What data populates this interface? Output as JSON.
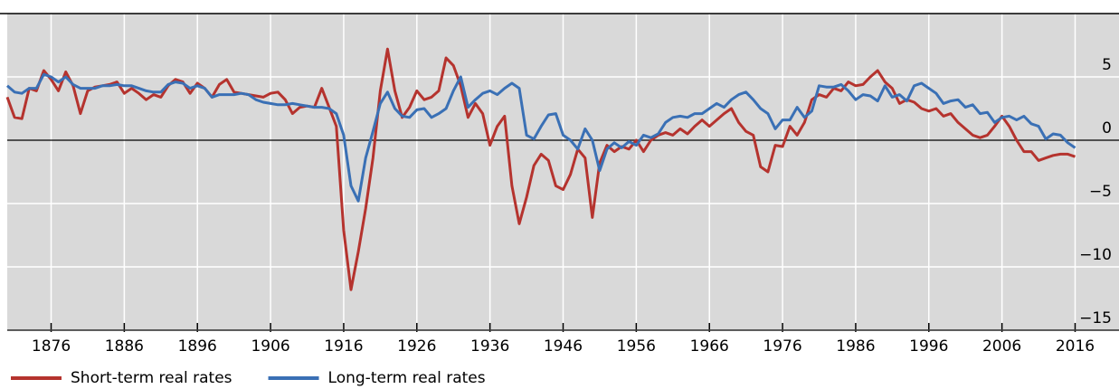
{
  "chart_data": {
    "type": "line",
    "x": [
      1870,
      1871,
      1872,
      1873,
      1874,
      1875,
      1876,
      1877,
      1878,
      1879,
      1880,
      1881,
      1882,
      1883,
      1884,
      1885,
      1886,
      1887,
      1888,
      1889,
      1890,
      1891,
      1892,
      1893,
      1894,
      1895,
      1896,
      1897,
      1898,
      1899,
      1900,
      1901,
      1902,
      1903,
      1904,
      1905,
      1906,
      1907,
      1908,
      1909,
      1910,
      1911,
      1912,
      1913,
      1914,
      1915,
      1916,
      1917,
      1918,
      1919,
      1920,
      1921,
      1922,
      1923,
      1924,
      1925,
      1926,
      1927,
      1928,
      1929,
      1930,
      1931,
      1932,
      1933,
      1934,
      1935,
      1936,
      1937,
      1938,
      1939,
      1940,
      1941,
      1942,
      1943,
      1944,
      1945,
      1946,
      1947,
      1948,
      1949,
      1950,
      1951,
      1952,
      1953,
      1954,
      1955,
      1956,
      1957,
      1958,
      1959,
      1960,
      1961,
      1962,
      1963,
      1964,
      1965,
      1966,
      1967,
      1968,
      1969,
      1970,
      1971,
      1972,
      1973,
      1974,
      1975,
      1976,
      1977,
      1978,
      1979,
      1980,
      1981,
      1982,
      1983,
      1984,
      1985,
      1986,
      1987,
      1988,
      1989,
      1990,
      1991,
      1992,
      1993,
      1994,
      1995,
      1996,
      1997,
      1998,
      1999,
      2000,
      2001,
      2002,
      2003,
      2004,
      2005,
      2006,
      2007,
      2008,
      2009,
      2010,
      2011,
      2012,
      2013,
      2014,
      2015,
      2016
    ],
    "series": [
      {
        "name": "Short-term real rates",
        "color": "#b5332e",
        "values": [
          3.4,
          1.8,
          1.7,
          4.1,
          3.9,
          5.5,
          4.8,
          3.9,
          5.4,
          4.3,
          2.1,
          3.9,
          4.2,
          4.3,
          4.4,
          4.6,
          3.7,
          4.1,
          3.7,
          3.2,
          3.6,
          3.4,
          4.3,
          4.8,
          4.6,
          3.7,
          4.5,
          4.1,
          3.4,
          4.4,
          4.8,
          3.8,
          3.7,
          3.6,
          3.5,
          3.4,
          3.7,
          3.8,
          3.2,
          2.1,
          2.6,
          2.7,
          2.6,
          4.1,
          2.6,
          1.1,
          -7.1,
          -11.8,
          -8.8,
          -5.4,
          -1.4,
          3.9,
          7.2,
          3.9,
          1.8,
          2.6,
          3.9,
          3.2,
          3.4,
          3.9,
          6.5,
          5.9,
          4.3,
          1.8,
          2.9,
          2.1,
          -0.4,
          1.1,
          1.9,
          -3.6,
          -6.6,
          -4.5,
          -2.0,
          -1.1,
          -1.6,
          -3.6,
          -3.9,
          -2.7,
          -0.7,
          -1.4,
          -6.1,
          -1.8,
          -0.4,
          -0.9,
          -0.5,
          -0.7,
          0,
          -0.9,
          0,
          0.4,
          0.6,
          0.4,
          0.9,
          0.5,
          1.1,
          1.6,
          1.1,
          1.6,
          2.1,
          2.5,
          1.4,
          0.7,
          0.4,
          -2.1,
          -2.5,
          -0.4,
          -0.5,
          1.1,
          0.4,
          1.4,
          3.2,
          3.6,
          3.4,
          4.1,
          3.9,
          4.6,
          4.3,
          4.4,
          5.0,
          5.5,
          4.6,
          4.1,
          2.9,
          3.2,
          3.0,
          2.5,
          2.3,
          2.5,
          1.9,
          2.1,
          1.4,
          0.9,
          0.4,
          0.2,
          0.4,
          1.1,
          1.9,
          1.1,
          0,
          -0.9,
          -0.9,
          -1.6,
          -1.4,
          -1.2,
          -1.1,
          -1.1,
          -1.3
        ]
      },
      {
        "name": "Long-term real rates",
        "color": "#3a70b5",
        "values": [
          4.3,
          3.8,
          3.7,
          4.1,
          4.1,
          5.2,
          5.0,
          4.6,
          5.0,
          4.4,
          4.1,
          4.1,
          4.1,
          4.3,
          4.3,
          4.4,
          4.3,
          4.3,
          4.1,
          3.9,
          3.8,
          3.8,
          4.4,
          4.6,
          4.5,
          4.1,
          4.3,
          4.1,
          3.4,
          3.6,
          3.6,
          3.6,
          3.7,
          3.6,
          3.2,
          3.0,
          2.9,
          2.8,
          2.8,
          2.9,
          2.8,
          2.7,
          2.6,
          2.6,
          2.5,
          2.1,
          0.4,
          -3.6,
          -4.8,
          -1.4,
          0.7,
          2.9,
          3.8,
          2.5,
          1.9,
          1.8,
          2.4,
          2.5,
          1.8,
          2.1,
          2.5,
          3.9,
          5.0,
          2.6,
          3.2,
          3.7,
          3.9,
          3.6,
          4.1,
          4.5,
          4.1,
          0.4,
          0.1,
          1.1,
          2.0,
          2.1,
          0.4,
          0,
          -0.7,
          0.9,
          0,
          -2.4,
          -0.7,
          -0.2,
          -0.6,
          -0.1,
          -0.4,
          0.4,
          0.2,
          0.5,
          1.4,
          1.8,
          1.9,
          1.8,
          2.1,
          2.1,
          2.5,
          2.9,
          2.6,
          3.2,
          3.6,
          3.8,
          3.2,
          2.5,
          2.1,
          0.9,
          1.6,
          1.6,
          2.6,
          1.8,
          2.3,
          4.3,
          4.2,
          4.2,
          4.4,
          3.9,
          3.2,
          3.6,
          3.5,
          3.1,
          4.3,
          3.4,
          3.6,
          3.1,
          4.3,
          4.5,
          4.1,
          3.7,
          2.9,
          3.1,
          3.2,
          2.6,
          2.8,
          2.1,
          2.2,
          1.4,
          1.8,
          1.9,
          1.6,
          1.9,
          1.3,
          1.1,
          0.1,
          0.5,
          0.4,
          -0.2,
          -0.6
        ]
      }
    ],
    "xlim": [
      1870,
      2022
    ],
    "xticks": [
      1876,
      1886,
      1896,
      1906,
      1916,
      1926,
      1936,
      1946,
      1956,
      1966,
      1976,
      1986,
      1996,
      2006,
      2016
    ],
    "ylim": [
      -15,
      10
    ],
    "yticks": [
      5,
      0,
      {
        "value": -5,
        "label": "−5"
      },
      {
        "value": -10,
        "label": "−10"
      },
      {
        "value": -15,
        "label": "−15"
      }
    ],
    "grid": true,
    "legend": "bottom-left"
  }
}
